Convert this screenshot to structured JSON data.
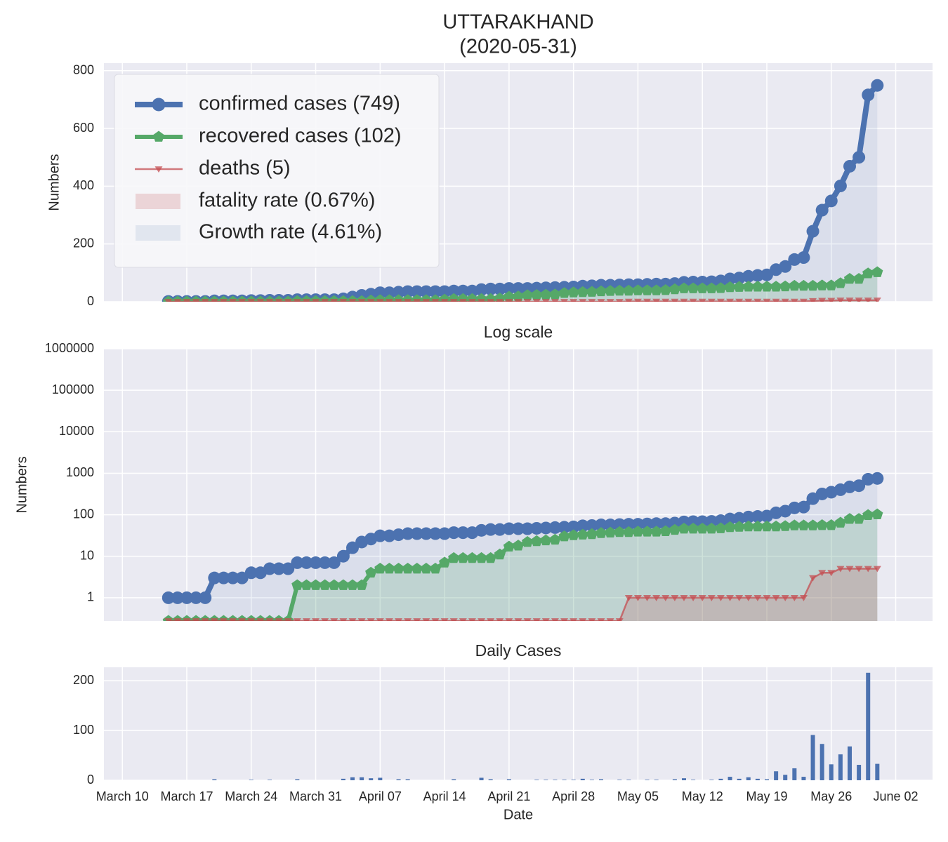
{
  "chart_data": [
    {
      "type": "line",
      "title": "UTTARAKHAND",
      "subtitle": "(2020-05-31)",
      "ylabel": "Numbers",
      "grid": true,
      "legend": "upper left",
      "xlim": [
        "March 08",
        "June 06"
      ],
      "ylim": [
        0,
        826
      ],
      "yticks": [
        0,
        200,
        400,
        600,
        800
      ],
      "x": [
        "March 15",
        "March 16",
        "March 17",
        "March 18",
        "March 19",
        "March 20",
        "March 21",
        "March 22",
        "March 23",
        "March 24",
        "March 25",
        "March 26",
        "March 27",
        "March 28",
        "March 29",
        "March 30",
        "March 31",
        "April 01",
        "April 02",
        "April 03",
        "April 04",
        "April 05",
        "April 06",
        "April 07",
        "April 08",
        "April 09",
        "April 10",
        "April 11",
        "April 12",
        "April 13",
        "April 14",
        "April 15",
        "April 16",
        "April 17",
        "April 18",
        "April 19",
        "April 20",
        "April 21",
        "April 22",
        "April 23",
        "April 24",
        "April 25",
        "April 26",
        "April 27",
        "April 28",
        "April 29",
        "April 30",
        "May 01",
        "May 02",
        "May 03",
        "May 04",
        "May 05",
        "May 06",
        "May 07",
        "May 08",
        "May 09",
        "May 10",
        "May 11",
        "May 12",
        "May 13",
        "May 14",
        "May 15",
        "May 16",
        "May 17",
        "May 18",
        "May 19",
        "May 20",
        "May 21",
        "May 22",
        "May 23",
        "May 24",
        "May 25",
        "May 26",
        "May 27",
        "May 28",
        "May 29",
        "May 30",
        "May 31"
      ],
      "series": [
        {
          "name": "confirmed cases (749)",
          "color": "#4c72b0",
          "marker": "circle",
          "values": [
            1,
            1,
            1,
            1,
            1,
            3,
            3,
            3,
            3,
            4,
            4,
            5,
            5,
            5,
            7,
            7,
            7,
            7,
            7,
            10,
            16,
            22,
            26,
            31,
            31,
            33,
            35,
            35,
            35,
            35,
            35,
            37,
            37,
            37,
            42,
            44,
            44,
            46,
            46,
            46,
            47,
            48,
            49,
            50,
            51,
            54,
            55,
            57,
            57,
            58,
            59,
            59,
            60,
            61,
            61,
            63,
            67,
            68,
            68,
            69,
            72,
            79,
            82,
            88,
            91,
            93,
            111,
            122,
            146,
            153,
            244,
            317,
            349,
            401,
            469,
            500,
            716,
            749
          ]
        },
        {
          "name": "recovered cases (102)",
          "color": "#55a868",
          "marker": "pentagon",
          "values": [
            0,
            0,
            0,
            0,
            0,
            0,
            0,
            0,
            0,
            0,
            0,
            0,
            0,
            0,
            2,
            2,
            2,
            2,
            2,
            2,
            2,
            2,
            4,
            5,
            5,
            5,
            5,
            5,
            5,
            5,
            7,
            9,
            9,
            9,
            9,
            9,
            11,
            17,
            18,
            22,
            23,
            24,
            25,
            30,
            32,
            33,
            34,
            36,
            37,
            38,
            38,
            39,
            39,
            39,
            40,
            43,
            46,
            46,
            46,
            46,
            47,
            50,
            51,
            52,
            52,
            52,
            52,
            53,
            55,
            55,
            55,
            56,
            56,
            64,
            79,
            79,
            98,
            102
          ]
        },
        {
          "name": "deaths (5)",
          "color": "#c44e52",
          "marker": "triangle",
          "values": [
            0,
            0,
            0,
            0,
            0,
            0,
            0,
            0,
            0,
            0,
            0,
            0,
            0,
            0,
            0,
            0,
            0,
            0,
            0,
            0,
            0,
            0,
            0,
            0,
            0,
            0,
            0,
            0,
            0,
            0,
            0,
            0,
            0,
            0,
            0,
            0,
            0,
            0,
            0,
            0,
            0,
            0,
            0,
            0,
            0,
            0,
            0,
            0,
            0,
            0,
            1,
            1,
            1,
            1,
            1,
            1,
            1,
            1,
            1,
            1,
            1,
            1,
            1,
            1,
            1,
            1,
            1,
            1,
            1,
            1,
            3,
            4,
            4,
            5,
            5,
            5,
            5,
            5
          ]
        }
      ],
      "legend_patches": [
        {
          "name": "fatality rate (0.67%)",
          "color": "#c44e52"
        },
        {
          "name": "Growth rate (4.61%)",
          "color": "#4c72b0"
        }
      ]
    },
    {
      "type": "line",
      "title": "Log scale",
      "ylabel": "Numbers",
      "grid": true,
      "yscale": "symlog",
      "xlim": [
        "March 08",
        "June 06"
      ],
      "ylim": [
        0,
        1000000
      ],
      "yticks": [
        1,
        10,
        100,
        1000,
        10000,
        100000,
        1000000
      ],
      "x": [
        "March 15",
        "March 16",
        "March 17",
        "March 18",
        "March 19",
        "March 20",
        "March 21",
        "March 22",
        "March 23",
        "March 24",
        "March 25",
        "March 26",
        "March 27",
        "March 28",
        "March 29",
        "March 30",
        "March 31",
        "April 01",
        "April 02",
        "April 03",
        "April 04",
        "April 05",
        "April 06",
        "April 07",
        "April 08",
        "April 09",
        "April 10",
        "April 11",
        "April 12",
        "April 13",
        "April 14",
        "April 15",
        "April 16",
        "April 17",
        "April 18",
        "April 19",
        "April 20",
        "April 21",
        "April 22",
        "April 23",
        "April 24",
        "April 25",
        "April 26",
        "April 27",
        "April 28",
        "April 29",
        "April 30",
        "May 01",
        "May 02",
        "May 03",
        "May 04",
        "May 05",
        "May 06",
        "May 07",
        "May 08",
        "May 09",
        "May 10",
        "May 11",
        "May 12",
        "May 13",
        "May 14",
        "May 15",
        "May 16",
        "May 17",
        "May 18",
        "May 19",
        "May 20",
        "May 21",
        "May 22",
        "May 23",
        "May 24",
        "May 25",
        "May 26",
        "May 27",
        "May 28",
        "May 29",
        "May 30",
        "May 31"
      ],
      "series": [
        {
          "name": "confirmed cases (749)",
          "color": "#4c72b0",
          "marker": "circle",
          "values": [
            1,
            1,
            1,
            1,
            1,
            3,
            3,
            3,
            3,
            4,
            4,
            5,
            5,
            5,
            7,
            7,
            7,
            7,
            7,
            10,
            16,
            22,
            26,
            31,
            31,
            33,
            35,
            35,
            35,
            35,
            35,
            37,
            37,
            37,
            42,
            44,
            44,
            46,
            46,
            46,
            47,
            48,
            49,
            50,
            51,
            54,
            55,
            57,
            57,
            58,
            59,
            59,
            60,
            61,
            61,
            63,
            67,
            68,
            68,
            69,
            72,
            79,
            82,
            88,
            91,
            93,
            111,
            122,
            146,
            153,
            244,
            317,
            349,
            401,
            469,
            500,
            716,
            749
          ]
        },
        {
          "name": "recovered cases (102)",
          "color": "#55a868",
          "marker": "pentagon",
          "values": [
            0,
            0,
            0,
            0,
            0,
            0,
            0,
            0,
            0,
            0,
            0,
            0,
            0,
            0,
            2,
            2,
            2,
            2,
            2,
            2,
            2,
            2,
            4,
            5,
            5,
            5,
            5,
            5,
            5,
            5,
            7,
            9,
            9,
            9,
            9,
            9,
            11,
            17,
            18,
            22,
            23,
            24,
            25,
            30,
            32,
            33,
            34,
            36,
            37,
            38,
            38,
            39,
            39,
            39,
            40,
            43,
            46,
            46,
            46,
            46,
            47,
            50,
            51,
            52,
            52,
            52,
            52,
            53,
            55,
            55,
            55,
            56,
            56,
            64,
            79,
            79,
            98,
            102
          ]
        },
        {
          "name": "deaths (5)",
          "color": "#c44e52",
          "marker": "triangle",
          "values": [
            0,
            0,
            0,
            0,
            0,
            0,
            0,
            0,
            0,
            0,
            0,
            0,
            0,
            0,
            0,
            0,
            0,
            0,
            0,
            0,
            0,
            0,
            0,
            0,
            0,
            0,
            0,
            0,
            0,
            0,
            0,
            0,
            0,
            0,
            0,
            0,
            0,
            0,
            0,
            0,
            0,
            0,
            0,
            0,
            0,
            0,
            0,
            0,
            0,
            0,
            1,
            1,
            1,
            1,
            1,
            1,
            1,
            1,
            1,
            1,
            1,
            1,
            1,
            1,
            1,
            1,
            1,
            1,
            1,
            1,
            3,
            4,
            4,
            5,
            5,
            5,
            5,
            5
          ]
        }
      ]
    },
    {
      "type": "bar",
      "title": "Daily Cases",
      "xlabel": "Date",
      "grid": true,
      "color": "#4c72b0",
      "xlim": [
        "March 08",
        "June 06"
      ],
      "ylim": [
        0,
        227
      ],
      "yticks": [
        0,
        100,
        200
      ],
      "xticks": [
        "March 10",
        "March 17",
        "March 24",
        "March 31",
        "April 07",
        "April 14",
        "April 21",
        "April 28",
        "May 05",
        "May 12",
        "May 19",
        "May 26",
        "June 02"
      ],
      "x": [
        "March 15",
        "March 16",
        "March 17",
        "March 18",
        "March 19",
        "March 20",
        "March 21",
        "March 22",
        "March 23",
        "March 24",
        "March 25",
        "March 26",
        "March 27",
        "March 28",
        "March 29",
        "March 30",
        "March 31",
        "April 01",
        "April 02",
        "April 03",
        "April 04",
        "April 05",
        "April 06",
        "April 07",
        "April 08",
        "April 09",
        "April 10",
        "April 11",
        "April 12",
        "April 13",
        "April 14",
        "April 15",
        "April 16",
        "April 17",
        "April 18",
        "April 19",
        "April 20",
        "April 21",
        "April 22",
        "April 23",
        "April 24",
        "April 25",
        "April 26",
        "April 27",
        "April 28",
        "April 29",
        "April 30",
        "May 01",
        "May 02",
        "May 03",
        "May 04",
        "May 05",
        "May 06",
        "May 07",
        "May 08",
        "May 09",
        "May 10",
        "May 11",
        "May 12",
        "May 13",
        "May 14",
        "May 15",
        "May 16",
        "May 17",
        "May 18",
        "May 19",
        "May 20",
        "May 21",
        "May 22",
        "May 23",
        "May 24",
        "May 25",
        "May 26",
        "May 27",
        "May 28",
        "May 29",
        "May 30",
        "May 31"
      ],
      "values": [
        0,
        0,
        0,
        0,
        0,
        2,
        0,
        0,
        0,
        1,
        0,
        1,
        0,
        0,
        2,
        0,
        0,
        0,
        0,
        3,
        6,
        6,
        4,
        5,
        0,
        2,
        2,
        0,
        0,
        0,
        0,
        2,
        0,
        0,
        5,
        2,
        0,
        2,
        0,
        0,
        1,
        1,
        1,
        1,
        1,
        3,
        1,
        2,
        0,
        1,
        1,
        0,
        1,
        1,
        0,
        2,
        4,
        1,
        0,
        1,
        3,
        7,
        3,
        6,
        3,
        2,
        18,
        11,
        24,
        7,
        91,
        73,
        32,
        52,
        68,
        31,
        216,
        33
      ]
    }
  ]
}
